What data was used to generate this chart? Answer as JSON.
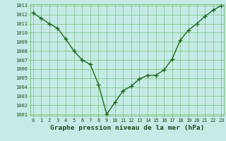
{
  "x": [
    0,
    1,
    2,
    3,
    4,
    5,
    6,
    7,
    8,
    9,
    10,
    11,
    12,
    13,
    14,
    15,
    16,
    17,
    18,
    19,
    20,
    21,
    22,
    23
  ],
  "y": [
    1012.2,
    1011.6,
    1011.0,
    1010.5,
    1009.3,
    1008.0,
    1007.0,
    1006.5,
    1004.3,
    1001.0,
    1002.3,
    1003.6,
    1004.1,
    1004.9,
    1005.3,
    1005.3,
    1005.9,
    1007.1,
    1009.2,
    1010.3,
    1011.0,
    1011.8,
    1012.5,
    1013.0
  ],
  "ylim_min": 1001,
  "ylim_max": 1013,
  "xlim_min": 0,
  "xlim_max": 23,
  "yticks": [
    1001,
    1002,
    1003,
    1004,
    1005,
    1006,
    1007,
    1008,
    1009,
    1010,
    1011,
    1012,
    1013
  ],
  "xticks": [
    0,
    1,
    2,
    3,
    4,
    5,
    6,
    7,
    8,
    9,
    10,
    11,
    12,
    13,
    14,
    15,
    16,
    17,
    18,
    19,
    20,
    21,
    22,
    23
  ],
  "xlabel": "Graphe pression niveau de la mer (hPa)",
  "line_color": "#1a6b1a",
  "marker": "+",
  "bg_color": "#c5ebe6",
  "grid_color": "#7abf7a",
  "tick_label_color": "#1a4a1a",
  "xlabel_color": "#1a4a1a",
  "tick_label_fontsize": 5.0,
  "xlabel_fontsize": 6.8,
  "linewidth": 1.0,
  "markersize": 4.5,
  "markeredgewidth": 1.0
}
